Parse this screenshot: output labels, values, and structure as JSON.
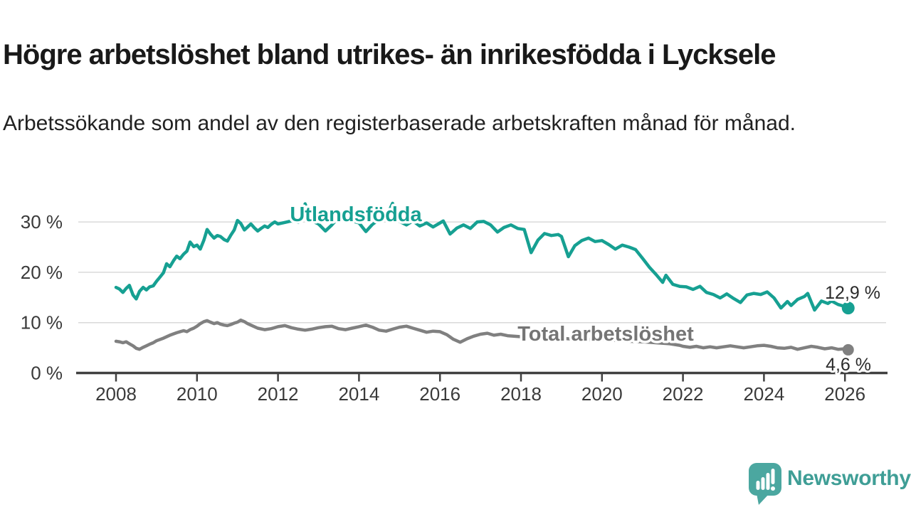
{
  "header": {
    "title": "Högre arbetslöshet bland utrikes- än inrikesfödda i Lycksele",
    "subtitle": "Arbetssökande som andel av den registerbaserade arbetskraften månad för månad."
  },
  "footer": {
    "brand": "Newsworthy"
  },
  "colors": {
    "accent_teal": "#16a092",
    "series_gray": "#808080",
    "label_gray": "#757575",
    "logo_teal": "#4ba7a0",
    "brand_text_teal": "#3f9e96",
    "axis": "#404040",
    "gridline": "#d9d9d9",
    "text_dark": "#191919"
  },
  "chart_data": {
    "type": "line",
    "title": "Högre arbetslöshet bland utrikes- än inrikesfödda i Lycksele",
    "subtitle": "Arbetssökande som andel av den registerbaserade arbetskraften månad för månad.",
    "xlabel": "",
    "ylabel": "",
    "unit": "%",
    "grid": true,
    "legend_position": "inline",
    "x_axis": {
      "tick_values": [
        2008,
        2010,
        2012,
        2014,
        2016,
        2018,
        2020,
        2022,
        2024,
        2026
      ],
      "tick_labels": [
        "2008",
        "2010",
        "2012",
        "2014",
        "2016",
        "2018",
        "2020",
        "2022",
        "2024",
        "2026"
      ],
      "range": [
        2007.0,
        2027.0
      ]
    },
    "y_axis": {
      "tick_values": [
        0,
        10,
        20,
        30
      ],
      "tick_labels": [
        "0 %",
        "10 %",
        "20 %",
        "30 %"
      ],
      "gridline_values": [
        10,
        20,
        30
      ],
      "range": [
        0,
        36
      ]
    },
    "series": [
      {
        "name": "Utlandsfödda",
        "color": "#16a092",
        "label_color": "#16a092",
        "end_value": 12.9,
        "end_label": "12,9 %",
        "points": [
          [
            2008.0,
            17.0
          ],
          [
            2008.08,
            16.7
          ],
          [
            2008.17,
            16.0
          ],
          [
            2008.25,
            16.8
          ],
          [
            2008.33,
            17.4
          ],
          [
            2008.42,
            15.5
          ],
          [
            2008.5,
            14.7
          ],
          [
            2008.58,
            16.2
          ],
          [
            2008.67,
            17.0
          ],
          [
            2008.75,
            16.5
          ],
          [
            2008.83,
            17.1
          ],
          [
            2008.92,
            17.3
          ],
          [
            2009.0,
            18.2
          ],
          [
            2009.08,
            19.0
          ],
          [
            2009.17,
            19.9
          ],
          [
            2009.25,
            21.7
          ],
          [
            2009.33,
            21.1
          ],
          [
            2009.42,
            22.3
          ],
          [
            2009.5,
            23.2
          ],
          [
            2009.58,
            22.7
          ],
          [
            2009.67,
            23.6
          ],
          [
            2009.75,
            24.2
          ],
          [
            2009.83,
            26.0
          ],
          [
            2009.92,
            25.1
          ],
          [
            2010.0,
            25.4
          ],
          [
            2010.08,
            24.6
          ],
          [
            2010.17,
            26.4
          ],
          [
            2010.25,
            28.5
          ],
          [
            2010.33,
            27.6
          ],
          [
            2010.42,
            26.8
          ],
          [
            2010.5,
            27.3
          ],
          [
            2010.58,
            27.1
          ],
          [
            2010.67,
            26.5
          ],
          [
            2010.75,
            26.2
          ],
          [
            2010.83,
            27.3
          ],
          [
            2010.92,
            28.4
          ],
          [
            2011.0,
            30.3
          ],
          [
            2011.08,
            29.7
          ],
          [
            2011.17,
            28.4
          ],
          [
            2011.25,
            29.0
          ],
          [
            2011.33,
            29.6
          ],
          [
            2011.42,
            28.8
          ],
          [
            2011.5,
            28.2
          ],
          [
            2011.58,
            28.7
          ],
          [
            2011.67,
            29.2
          ],
          [
            2011.75,
            28.9
          ],
          [
            2011.83,
            29.5
          ],
          [
            2011.92,
            30.0
          ],
          [
            2012.0,
            29.6
          ],
          [
            2012.17,
            29.9
          ],
          [
            2012.33,
            30.2
          ],
          [
            2012.5,
            29.9
          ],
          [
            2012.58,
            31.0
          ],
          [
            2012.67,
            33.6
          ],
          [
            2012.75,
            31.8
          ],
          [
            2012.83,
            30.4
          ],
          [
            2012.92,
            29.9
          ],
          [
            2013.0,
            29.6
          ],
          [
            2013.17,
            28.2
          ],
          [
            2013.33,
            29.4
          ],
          [
            2013.5,
            30.9
          ],
          [
            2013.58,
            30.3
          ],
          [
            2013.67,
            31.2
          ],
          [
            2013.83,
            30.2
          ],
          [
            2014.0,
            29.8
          ],
          [
            2014.17,
            28.1
          ],
          [
            2014.33,
            29.5
          ],
          [
            2014.5,
            30.5
          ],
          [
            2014.67,
            30.9
          ],
          [
            2014.83,
            33.7
          ],
          [
            2014.92,
            31.5
          ],
          [
            2015.0,
            30.1
          ],
          [
            2015.17,
            29.4
          ],
          [
            2015.33,
            30.2
          ],
          [
            2015.5,
            29.2
          ],
          [
            2015.67,
            29.8
          ],
          [
            2015.83,
            29.0
          ],
          [
            2016.0,
            29.8
          ],
          [
            2016.08,
            30.2
          ],
          [
            2016.25,
            27.6
          ],
          [
            2016.42,
            28.8
          ],
          [
            2016.58,
            29.4
          ],
          [
            2016.75,
            28.7
          ],
          [
            2016.92,
            30.0
          ],
          [
            2017.08,
            30.1
          ],
          [
            2017.25,
            29.4
          ],
          [
            2017.42,
            28.0
          ],
          [
            2017.58,
            28.9
          ],
          [
            2017.75,
            29.4
          ],
          [
            2017.92,
            28.7
          ],
          [
            2018.08,
            28.5
          ],
          [
            2018.25,
            23.9
          ],
          [
            2018.42,
            26.4
          ],
          [
            2018.58,
            27.7
          ],
          [
            2018.75,
            27.3
          ],
          [
            2018.92,
            27.5
          ],
          [
            2019.0,
            27.1
          ],
          [
            2019.17,
            23.1
          ],
          [
            2019.33,
            25.3
          ],
          [
            2019.5,
            26.3
          ],
          [
            2019.67,
            26.8
          ],
          [
            2019.83,
            26.1
          ],
          [
            2020.0,
            26.3
          ],
          [
            2020.17,
            25.5
          ],
          [
            2020.33,
            24.6
          ],
          [
            2020.5,
            25.4
          ],
          [
            2020.67,
            25.0
          ],
          [
            2020.83,
            24.5
          ],
          [
            2021.0,
            22.8
          ],
          [
            2021.17,
            21.0
          ],
          [
            2021.33,
            19.6
          ],
          [
            2021.5,
            18.0
          ],
          [
            2021.58,
            19.4
          ],
          [
            2021.75,
            17.6
          ],
          [
            2021.92,
            17.2
          ],
          [
            2022.08,
            17.1
          ],
          [
            2022.25,
            16.6
          ],
          [
            2022.42,
            17.2
          ],
          [
            2022.58,
            16.0
          ],
          [
            2022.75,
            15.6
          ],
          [
            2022.92,
            14.9
          ],
          [
            2023.08,
            15.7
          ],
          [
            2023.25,
            14.8
          ],
          [
            2023.42,
            14.0
          ],
          [
            2023.58,
            15.5
          ],
          [
            2023.75,
            15.8
          ],
          [
            2023.92,
            15.6
          ],
          [
            2024.08,
            16.1
          ],
          [
            2024.25,
            14.9
          ],
          [
            2024.42,
            12.9
          ],
          [
            2024.58,
            14.2
          ],
          [
            2024.67,
            13.4
          ],
          [
            2024.83,
            14.6
          ],
          [
            2025.0,
            15.2
          ],
          [
            2025.08,
            15.8
          ],
          [
            2025.25,
            12.5
          ],
          [
            2025.42,
            14.3
          ],
          [
            2025.58,
            13.8
          ],
          [
            2025.67,
            14.3
          ],
          [
            2025.83,
            13.6
          ],
          [
            2026.0,
            13.2
          ],
          [
            2026.08,
            12.9
          ]
        ]
      },
      {
        "name": "Total arbetslöshet",
        "color": "#808080",
        "label_color": "#757575",
        "end_value": 4.6,
        "end_label": "4,6 %",
        "points": [
          [
            2008.0,
            6.3
          ],
          [
            2008.08,
            6.2
          ],
          [
            2008.17,
            6.0
          ],
          [
            2008.25,
            6.2
          ],
          [
            2008.33,
            5.8
          ],
          [
            2008.42,
            5.4
          ],
          [
            2008.5,
            4.9
          ],
          [
            2008.58,
            4.7
          ],
          [
            2008.67,
            5.1
          ],
          [
            2008.75,
            5.4
          ],
          [
            2008.83,
            5.7
          ],
          [
            2008.92,
            6.0
          ],
          [
            2009.0,
            6.4
          ],
          [
            2009.17,
            6.9
          ],
          [
            2009.33,
            7.5
          ],
          [
            2009.5,
            8.0
          ],
          [
            2009.67,
            8.4
          ],
          [
            2009.75,
            8.2
          ],
          [
            2009.83,
            8.6
          ],
          [
            2009.92,
            8.9
          ],
          [
            2010.0,
            9.3
          ],
          [
            2010.08,
            9.8
          ],
          [
            2010.17,
            10.2
          ],
          [
            2010.25,
            10.4
          ],
          [
            2010.33,
            10.1
          ],
          [
            2010.42,
            9.8
          ],
          [
            2010.5,
            10.0
          ],
          [
            2010.58,
            9.7
          ],
          [
            2010.67,
            9.5
          ],
          [
            2010.75,
            9.4
          ],
          [
            2010.83,
            9.6
          ],
          [
            2010.92,
            9.9
          ],
          [
            2011.0,
            10.1
          ],
          [
            2011.08,
            10.5
          ],
          [
            2011.17,
            10.2
          ],
          [
            2011.25,
            9.8
          ],
          [
            2011.33,
            9.5
          ],
          [
            2011.5,
            8.9
          ],
          [
            2011.67,
            8.6
          ],
          [
            2011.83,
            8.8
          ],
          [
            2012.0,
            9.2
          ],
          [
            2012.17,
            9.4
          ],
          [
            2012.33,
            9.0
          ],
          [
            2012.5,
            8.7
          ],
          [
            2012.67,
            8.5
          ],
          [
            2012.83,
            8.7
          ],
          [
            2013.0,
            9.0
          ],
          [
            2013.17,
            9.2
          ],
          [
            2013.33,
            9.3
          ],
          [
            2013.5,
            8.8
          ],
          [
            2013.67,
            8.6
          ],
          [
            2013.83,
            8.9
          ],
          [
            2014.0,
            9.2
          ],
          [
            2014.17,
            9.5
          ],
          [
            2014.33,
            9.1
          ],
          [
            2014.5,
            8.5
          ],
          [
            2014.67,
            8.3
          ],
          [
            2014.83,
            8.7
          ],
          [
            2015.0,
            9.1
          ],
          [
            2015.17,
            9.3
          ],
          [
            2015.33,
            8.9
          ],
          [
            2015.5,
            8.5
          ],
          [
            2015.67,
            8.1
          ],
          [
            2015.83,
            8.3
          ],
          [
            2016.0,
            8.2
          ],
          [
            2016.17,
            7.6
          ],
          [
            2016.33,
            6.7
          ],
          [
            2016.5,
            6.1
          ],
          [
            2016.67,
            6.8
          ],
          [
            2016.83,
            7.3
          ],
          [
            2017.0,
            7.7
          ],
          [
            2017.17,
            7.9
          ],
          [
            2017.33,
            7.5
          ],
          [
            2017.5,
            7.7
          ],
          [
            2017.67,
            7.4
          ],
          [
            2018.0,
            7.2
          ],
          [
            2018.33,
            6.9
          ],
          [
            2018.67,
            6.8
          ],
          [
            2019.0,
            6.9
          ],
          [
            2019.33,
            6.7
          ],
          [
            2019.67,
            6.6
          ],
          [
            2020.0,
            6.7
          ],
          [
            2020.33,
            6.5
          ],
          [
            2020.67,
            6.3
          ],
          [
            2021.0,
            6.2
          ],
          [
            2021.33,
            6.0
          ],
          [
            2021.67,
            5.8
          ],
          [
            2021.92,
            5.5
          ],
          [
            2022.0,
            5.3
          ],
          [
            2022.17,
            5.1
          ],
          [
            2022.33,
            5.3
          ],
          [
            2022.5,
            5.0
          ],
          [
            2022.67,
            5.2
          ],
          [
            2022.83,
            5.0
          ],
          [
            2023.0,
            5.2
          ],
          [
            2023.17,
            5.4
          ],
          [
            2023.33,
            5.2
          ],
          [
            2023.5,
            5.0
          ],
          [
            2023.67,
            5.2
          ],
          [
            2023.83,
            5.4
          ],
          [
            2024.0,
            5.5
          ],
          [
            2024.17,
            5.3
          ],
          [
            2024.33,
            5.0
          ],
          [
            2024.5,
            4.9
          ],
          [
            2024.67,
            5.1
          ],
          [
            2024.83,
            4.7
          ],
          [
            2025.0,
            5.0
          ],
          [
            2025.17,
            5.3
          ],
          [
            2025.33,
            5.1
          ],
          [
            2025.5,
            4.8
          ],
          [
            2025.67,
            5.0
          ],
          [
            2025.83,
            4.7
          ],
          [
            2026.0,
            4.8
          ],
          [
            2026.08,
            4.6
          ]
        ]
      }
    ]
  }
}
